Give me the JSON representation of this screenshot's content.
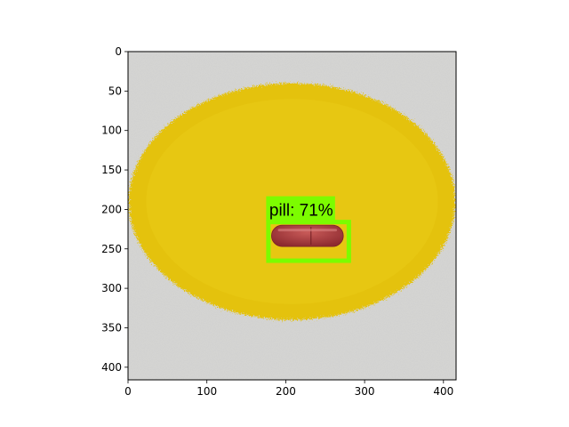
{
  "figure": {
    "background": "#ffffff",
    "image_width": 416,
    "image_height": 416
  },
  "x_axis": {
    "ticks": [
      0,
      100,
      200,
      300,
      400
    ],
    "range": [
      0,
      416
    ]
  },
  "y_axis": {
    "ticks": [
      0,
      50,
      100,
      150,
      200,
      250,
      300,
      350,
      400
    ],
    "range": [
      0,
      416
    ],
    "inverted": true
  },
  "scene": {
    "paper_color": "#d6d6d4",
    "yellow_disc_color": "#e4c20e",
    "pill_color": "#a83a3c"
  },
  "detection": {
    "label": "pill: 71%",
    "class": "pill",
    "score_percent": 71,
    "box": {
      "x_min": 178,
      "y_min": 216,
      "x_max": 280,
      "y_max": 265
    },
    "box_color": "#7cfc00"
  }
}
